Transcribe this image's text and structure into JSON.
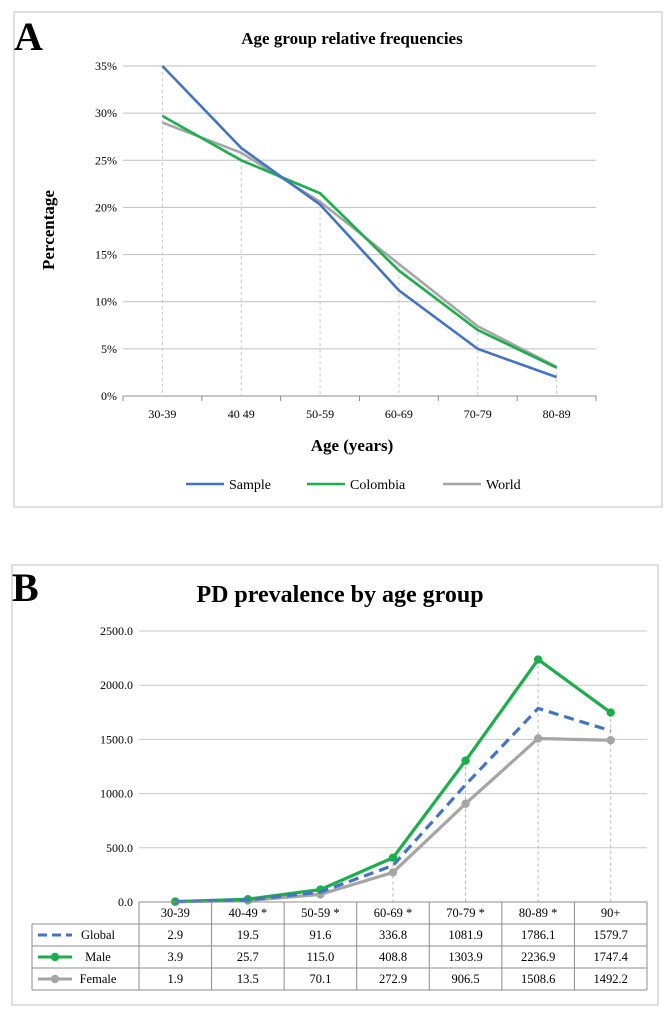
{
  "chart_data": [
    {
      "panel_label": "A",
      "type": "line",
      "title": "Age group relative frequencies",
      "xlabel": "Age (years)",
      "ylabel": "Percentage",
      "categories": [
        "30-39",
        "40 49",
        "50-59",
        "60-69",
        "70-79",
        "80-89"
      ],
      "ylim": [
        0,
        35
      ],
      "yticks": [
        "0%",
        "5%",
        "10%",
        "15%",
        "20%",
        "25%",
        "30%",
        "35%"
      ],
      "grid": "horizontal",
      "legend_position": "bottom",
      "series": [
        {
          "name": "Sample",
          "color": "#4472c4",
          "values": [
            35.0,
            26.3,
            20.3,
            11.2,
            5.0,
            2.0
          ]
        },
        {
          "name": "Colombia",
          "color": "#1aaf4b",
          "values": [
            29.7,
            25.0,
            21.5,
            13.3,
            7.0,
            3.0
          ]
        },
        {
          "name": "World",
          "color": "#a5a5a5",
          "values": [
            29.0,
            25.8,
            20.6,
            14.0,
            7.4,
            3.1
          ]
        }
      ]
    },
    {
      "panel_label": "B",
      "type": "line",
      "title": "PD prevalence by age group",
      "categories": [
        "30-39",
        "40-49 *",
        "50-59 *",
        "60-69 *",
        "70-79 *",
        "80-89 *",
        "90+"
      ],
      "ylim": [
        0,
        2500
      ],
      "yticks": [
        "0.0",
        "500.0",
        "1000.0",
        "1500.0",
        "2000.0",
        "2500.0"
      ],
      "grid": "horizontal",
      "legend_position": "data-table",
      "series": [
        {
          "name": "Global",
          "color": "#4472c4",
          "style": "dashed",
          "values": [
            2.9,
            19.5,
            91.6,
            336.8,
            1081.9,
            1786.1,
            1579.7
          ],
          "labels": [
            "2.9",
            "19.5",
            "91.6",
            "336.8",
            "1081.9",
            "1786.1",
            "1579.7"
          ]
        },
        {
          "name": "Male",
          "color": "#1aaf4b",
          "style": "solid-marker",
          "values": [
            3.9,
            25.7,
            115.0,
            408.8,
            1303.9,
            2236.9,
            1747.4
          ],
          "labels": [
            "3.9",
            "25.7",
            "115.0",
            "408.8",
            "1303.9",
            "2236.9",
            "1747.4"
          ]
        },
        {
          "name": "Female",
          "color": "#a5a5a5",
          "style": "solid-marker",
          "values": [
            1.9,
            13.5,
            70.1,
            272.9,
            906.5,
            1508.6,
            1492.2
          ],
          "labels": [
            "1.9",
            "13.5",
            "70.1",
            "272.9",
            "906.5",
            "1508.6",
            "1492.2"
          ]
        }
      ]
    }
  ]
}
